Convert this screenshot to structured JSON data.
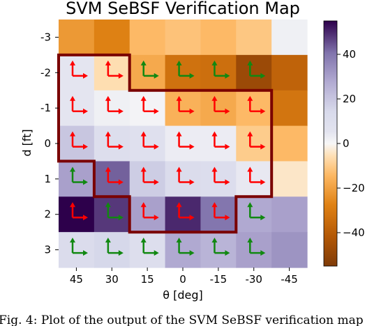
{
  "chart_data": {
    "type": "heatmap",
    "title": "SVM SeBSF Verification Map",
    "xlabel": "θ [deg]",
    "ylabel": "d [ft]",
    "x_categories": [
      "45",
      "30",
      "15",
      "0",
      "-15",
      "-30",
      "-45"
    ],
    "y_categories": [
      "-3",
      "-2",
      "-1",
      "0",
      "1",
      "2",
      "3"
    ],
    "values": [
      [
        -22,
        -28,
        -14,
        -12,
        -14,
        -11,
        2
      ],
      [
        5,
        -6,
        -18,
        -33,
        -34,
        -48,
        -38
      ],
      [
        5,
        2,
        1,
        -16,
        -18,
        -14,
        -32
      ],
      [
        20,
        10,
        8,
        3,
        3,
        -10,
        -14
      ],
      [
        30,
        43,
        18,
        12,
        11,
        4,
        -4
      ],
      [
        55,
        48,
        30,
        50,
        40,
        28,
        30
      ],
      [
        12,
        15,
        10,
        28,
        25,
        30,
        33
      ]
    ],
    "colorbar": {
      "ticks": [
        "40",
        "20",
        "0",
        "−20",
        "−40"
      ],
      "range": [
        -55,
        55
      ],
      "colormap": "PuOr"
    },
    "arrows": [
      [
        "",
        "",
        "",
        "",
        "",
        "",
        ""
      ],
      [
        "red",
        "red",
        "green",
        "green",
        "green",
        "green",
        ""
      ],
      [
        "red",
        "red",
        "red",
        "red",
        "red",
        "red",
        ""
      ],
      [
        "red",
        "red",
        "red",
        "red",
        "red",
        "red",
        ""
      ],
      [
        "green",
        "red",
        "red",
        "red",
        "red",
        "red",
        ""
      ],
      [
        "red",
        "green",
        "red",
        "red",
        "red",
        "green",
        ""
      ],
      [
        "green",
        "green",
        "green",
        "green",
        "green",
        "green",
        ""
      ]
    ],
    "region_colors": {
      "boundary": "#7a0000",
      "arrow_red": "#ff0000",
      "arrow_green": "#118811"
    }
  },
  "caption": "Fig. 4: Plot of the output of the SVM SeBSF verification map"
}
